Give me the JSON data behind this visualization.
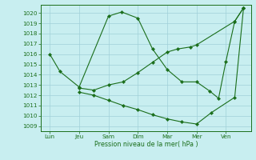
{
  "title": "Pression niveau de la mer( hPa )",
  "bg_color": "#c8eef0",
  "grid_color": "#a0d0d8",
  "line_color": "#1a6e1a",
  "ylim": [
    1008.5,
    1020.8
  ],
  "yticks": [
    1009,
    1010,
    1011,
    1012,
    1013,
    1014,
    1015,
    1016,
    1017,
    1018,
    1019,
    1020
  ],
  "xtick_labels": [
    "Lun",
    "Jeu",
    "Sam",
    "Dim",
    "Mar",
    "Mer",
    "Ven"
  ],
  "xtick_positions": [
    0,
    1,
    2,
    3,
    4,
    5,
    6
  ],
  "s1_x": [
    0,
    0.35,
    1.0,
    2.0,
    2.45,
    3.0,
    3.5,
    4.0,
    4.5,
    5.0,
    5.45,
    5.75,
    6.0,
    6.3,
    6.6
  ],
  "s1_y": [
    1016.0,
    1014.3,
    1012.8,
    1019.7,
    1020.1,
    1019.5,
    1016.5,
    1014.5,
    1013.3,
    1013.3,
    1012.4,
    1011.7,
    1015.3,
    1019.2,
    1020.5
  ],
  "s2_x": [
    1.0,
    1.5,
    2.0,
    2.5,
    3.0,
    3.5,
    4.0,
    4.35,
    4.8,
    5.0,
    6.3,
    6.6
  ],
  "s2_y": [
    1012.7,
    1012.5,
    1013.0,
    1013.3,
    1014.2,
    1015.2,
    1016.2,
    1016.5,
    1016.7,
    1016.9,
    1019.2,
    1020.5
  ],
  "s3_x": [
    1.0,
    1.5,
    2.0,
    2.5,
    3.0,
    3.5,
    4.0,
    4.5,
    5.0,
    5.5,
    6.3,
    6.6
  ],
  "s3_y": [
    1012.3,
    1012.0,
    1011.5,
    1011.0,
    1010.6,
    1010.1,
    1009.7,
    1009.4,
    1009.2,
    1010.3,
    1011.8,
    1020.5
  ],
  "xlim": [
    -0.3,
    6.85
  ],
  "title_fontsize": 5.8,
  "tick_fontsize": 5.2,
  "linewidth": 0.8,
  "markersize": 2.2
}
